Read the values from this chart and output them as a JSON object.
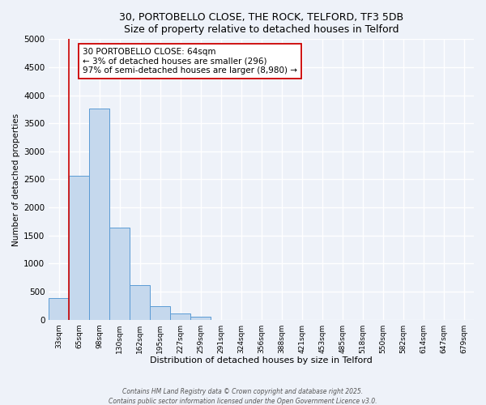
{
  "title": "30, PORTOBELLO CLOSE, THE ROCK, TELFORD, TF3 5DB",
  "subtitle": "Size of property relative to detached houses in Telford",
  "xlabel": "Distribution of detached houses by size in Telford",
  "ylabel": "Number of detached properties",
  "bar_labels": [
    "33sqm",
    "65sqm",
    "98sqm",
    "130sqm",
    "162sqm",
    "195sqm",
    "227sqm",
    "259sqm",
    "291sqm",
    "324sqm",
    "356sqm",
    "388sqm",
    "421sqm",
    "453sqm",
    "485sqm",
    "518sqm",
    "550sqm",
    "582sqm",
    "614sqm",
    "647sqm",
    "679sqm"
  ],
  "bar_values": [
    390,
    2570,
    3760,
    1640,
    610,
    240,
    105,
    55,
    0,
    0,
    0,
    0,
    0,
    0,
    0,
    0,
    0,
    0,
    0,
    0,
    0
  ],
  "bar_color": "#c5d8ed",
  "bar_edge_color": "#5b9bd5",
  "annotation_text_line1": "30 PORTOBELLO CLOSE: 64sqm",
  "annotation_text_line2": "← 3% of detached houses are smaller (296)",
  "annotation_text_line3": "97% of semi-detached houses are larger (8,980) →",
  "vline_color": "#cc0000",
  "vline_x": 1.0,
  "ylim": [
    0,
    5000
  ],
  "yticks": [
    0,
    500,
    1000,
    1500,
    2000,
    2500,
    3000,
    3500,
    4000,
    4500,
    5000
  ],
  "footer1": "Contains HM Land Registry data © Crown copyright and database right 2025.",
  "footer2": "Contains public sector information licensed under the Open Government Licence v3.0.",
  "bg_color": "#eef2f9",
  "plot_bg_color": "#eef2f9",
  "grid_color": "#ffffff"
}
